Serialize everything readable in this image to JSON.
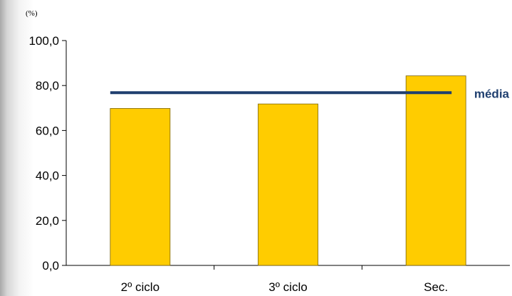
{
  "chart_data": {
    "type": "bar",
    "unit_label": "(%)",
    "categories": [
      "2º ciclo",
      "3º ciclo",
      "Sec."
    ],
    "values": [
      69.8,
      71.8,
      84.3
    ],
    "ylim": [
      0,
      100
    ],
    "yticks": [
      "0,0",
      "20,0",
      "40,0",
      "60,0",
      "80,0",
      "100,0"
    ],
    "ytick_values": [
      0,
      20,
      40,
      60,
      80,
      100
    ],
    "average": {
      "label": "média",
      "value": 76.8
    },
    "grid": false,
    "colors": {
      "bar": "#FFCC00",
      "bar_border": "#7a6200",
      "average_line": "#1F3F6F",
      "axis": "#000000"
    }
  }
}
